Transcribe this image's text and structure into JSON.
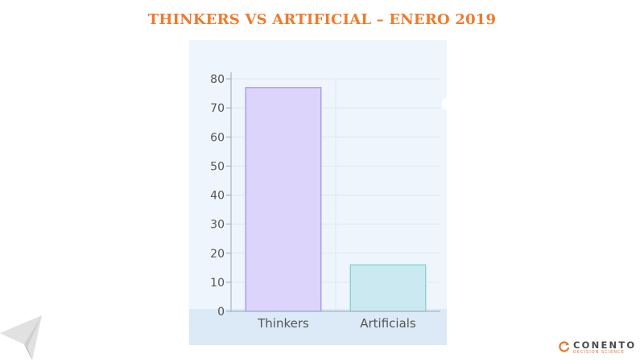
{
  "slide": {
    "title": "THINKERS VS ARTIFICIAL – ENERO 2019",
    "title_color": "#f07a2c"
  },
  "branding": {
    "left_logo_icon": "paper-plane-logo-icon",
    "right_logo_name": "CONENTO",
    "right_logo_tagline": "DECISION SCIENCE",
    "right_logo_icon": "conento-swirl-icon",
    "accent": "#e8772e"
  },
  "chart_data": {
    "type": "bar",
    "categories": [
      "Thinkers",
      "Artificials"
    ],
    "values": [
      77,
      16
    ],
    "title": "",
    "xlabel": "",
    "ylabel": "",
    "ylim": [
      0,
      80
    ],
    "yticks": [
      0,
      10,
      20,
      30,
      40,
      50,
      60,
      70,
      80
    ],
    "grid": true,
    "legend": "none",
    "colors": [
      {
        "fill": "#dcd4fb",
        "stroke": "#a18cf0"
      },
      {
        "fill": "#cbe9f0",
        "stroke": "#7dcfcf"
      }
    ],
    "axis_color": "#9aa8b8",
    "grid_color": "#dfe6ee",
    "tick_label_color": "#555555"
  }
}
